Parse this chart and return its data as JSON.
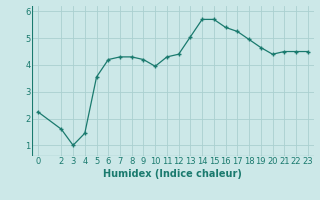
{
  "x": [
    0,
    2,
    3,
    4,
    5,
    6,
    7,
    8,
    9,
    10,
    11,
    12,
    13,
    14,
    15,
    16,
    17,
    18,
    19,
    20,
    21,
    22,
    23
  ],
  "y": [
    2.25,
    1.6,
    1.0,
    1.45,
    3.55,
    4.2,
    4.3,
    4.3,
    4.2,
    3.95,
    4.3,
    4.4,
    5.05,
    5.7,
    5.7,
    5.4,
    5.25,
    4.95,
    4.65,
    4.4,
    4.5,
    4.5,
    4.5
  ],
  "line_color": "#1a7a6e",
  "marker": "+",
  "marker_size": 3,
  "marker_linewidth": 1.0,
  "bg_color": "#cce8e8",
  "grid_color": "#aad0d0",
  "xlabel": "Humidex (Indice chaleur)",
  "xlabel_fontsize": 7,
  "tick_fontsize": 6,
  "xlim": [
    -0.5,
    23.5
  ],
  "ylim": [
    0.6,
    6.2
  ],
  "yticks": [
    1,
    2,
    3,
    4,
    5,
    6
  ],
  "xticks": [
    0,
    2,
    3,
    4,
    5,
    6,
    7,
    8,
    9,
    10,
    11,
    12,
    13,
    14,
    15,
    16,
    17,
    18,
    19,
    20,
    21,
    22,
    23
  ],
  "linewidth": 0.9
}
